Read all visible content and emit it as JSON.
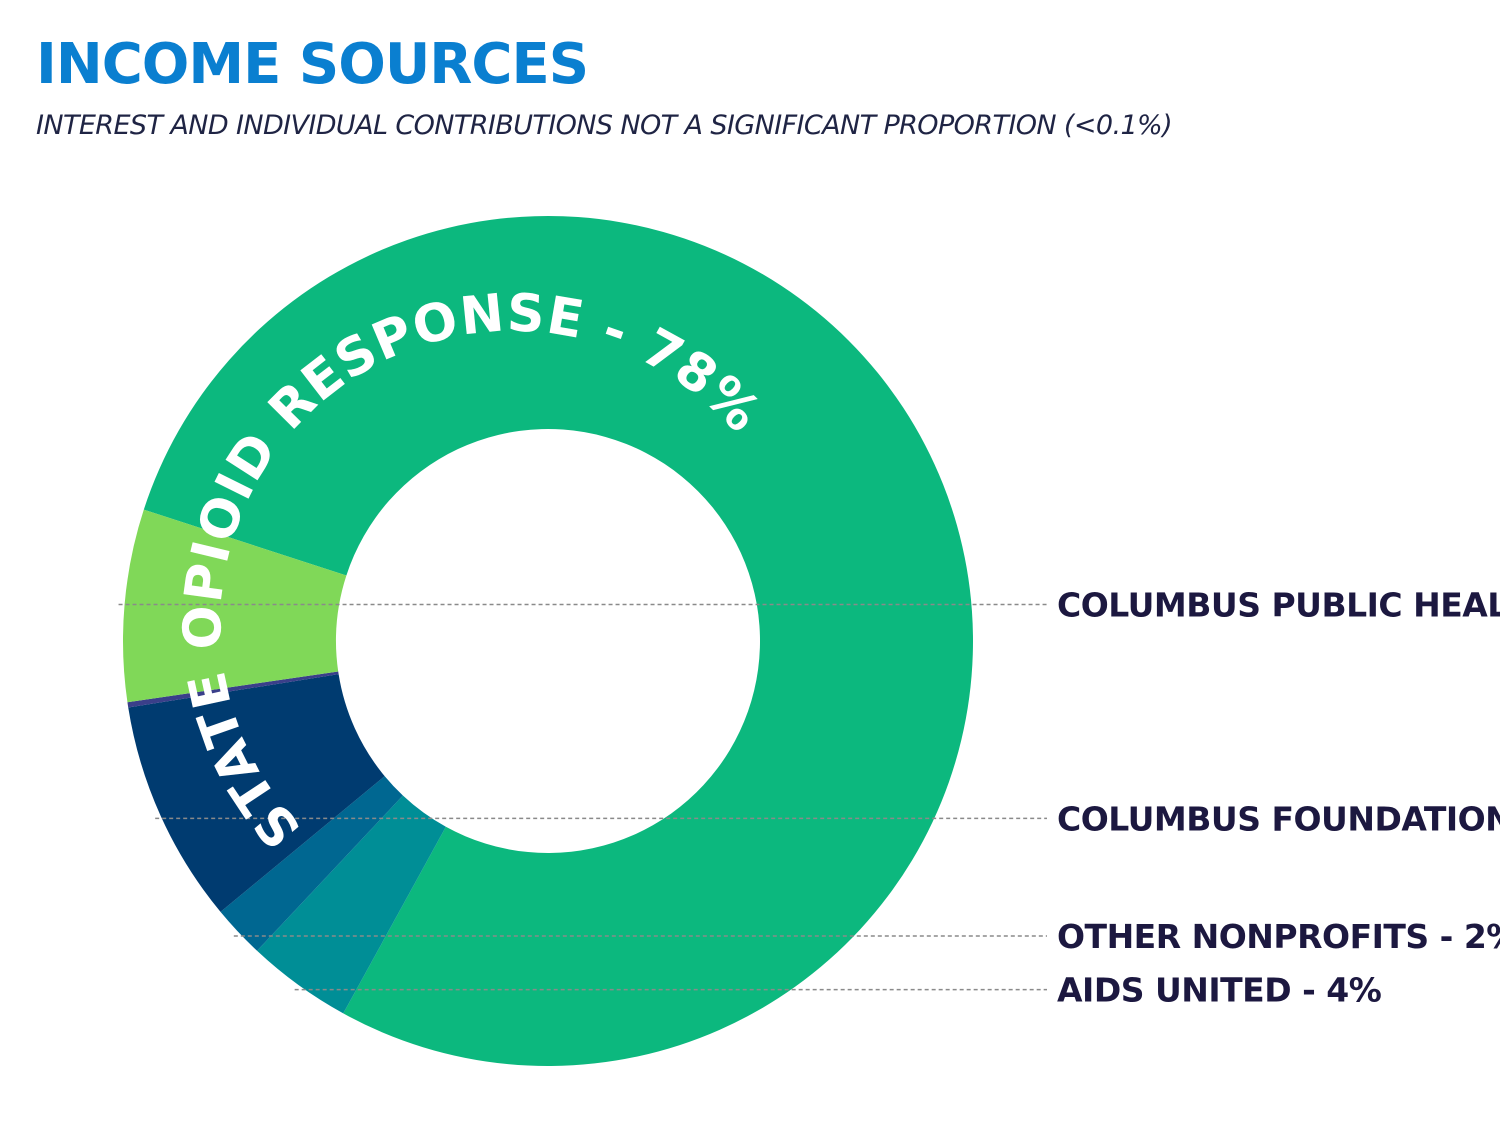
{
  "header": {
    "title": "INCOME SOURCES",
    "subtitle": "INTEREST AND INDIVIDUAL CONTRIBUTIONS NOT A SIGNIFICANT PROPORTION (<0.1%)"
  },
  "chart_data": {
    "type": "pie",
    "title": "INCOME SOURCES",
    "subtitle": "INTEREST AND INDIVIDUAL CONTRIBUTIONS NOT A SIGNIFICANT PROPORTION (<0.1%)",
    "slices": [
      {
        "label": "STATE OPIOID RESPONSE - 78%",
        "value": 78,
        "color": "#0cb87e"
      },
      {
        "label": "AIDS UNITED - 4%",
        "value": 4,
        "color": "#008e96"
      },
      {
        "label": "OTHER NONPROFITS - 2%",
        "value": 2,
        "color": "#006791"
      },
      {
        "label": "COLUMBUS FOUNDATION",
        "value": 8.5,
        "color": "#003b70"
      },
      {
        "label": "",
        "value": 0.2,
        "color": "#3a3f8a"
      },
      {
        "label": "COLUMBUS PUBLIC HEALTH",
        "value": 7.3,
        "color": "#80d858"
      }
    ],
    "legend": "right"
  }
}
